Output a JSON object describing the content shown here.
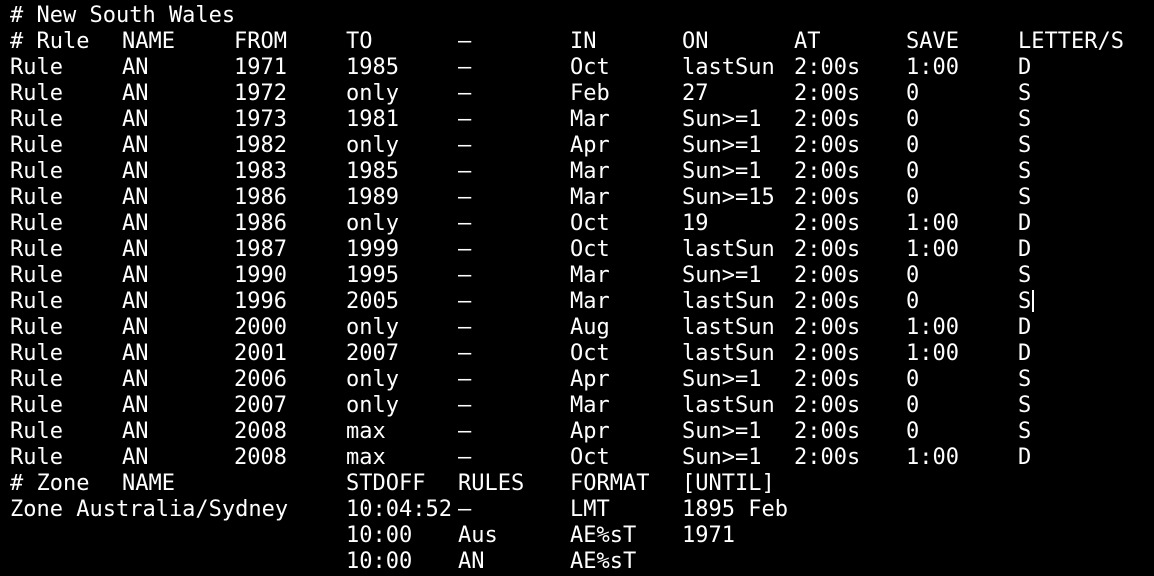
{
  "title": "# New South Wales",
  "rule_header": [
    "# Rule",
    "NAME",
    "FROM",
    "TO",
    "–",
    "IN",
    "ON",
    "AT",
    "SAVE",
    "LETTER/S"
  ],
  "rules": [
    [
      "Rule",
      "AN",
      "1971",
      "1985",
      "–",
      "Oct",
      "lastSun",
      "2:00s",
      "1:00",
      "D"
    ],
    [
      "Rule",
      "AN",
      "1972",
      "only",
      "–",
      "Feb",
      "27",
      "2:00s",
      "0",
      "S"
    ],
    [
      "Rule",
      "AN",
      "1973",
      "1981",
      "–",
      "Mar",
      "Sun>=1",
      "2:00s",
      "0",
      "S"
    ],
    [
      "Rule",
      "AN",
      "1982",
      "only",
      "–",
      "Apr",
      "Sun>=1",
      "2:00s",
      "0",
      "S"
    ],
    [
      "Rule",
      "AN",
      "1983",
      "1985",
      "–",
      "Mar",
      "Sun>=1",
      "2:00s",
      "0",
      "S"
    ],
    [
      "Rule",
      "AN",
      "1986",
      "1989",
      "–",
      "Mar",
      "Sun>=15",
      "2:00s",
      "0",
      "S"
    ],
    [
      "Rule",
      "AN",
      "1986",
      "only",
      "–",
      "Oct",
      "19",
      "2:00s",
      "1:00",
      "D"
    ],
    [
      "Rule",
      "AN",
      "1987",
      "1999",
      "–",
      "Oct",
      "lastSun",
      "2:00s",
      "1:00",
      "D"
    ],
    [
      "Rule",
      "AN",
      "1990",
      "1995",
      "–",
      "Mar",
      "Sun>=1",
      "2:00s",
      "0",
      "S"
    ],
    [
      "Rule",
      "AN",
      "1996",
      "2005",
      "–",
      "Mar",
      "lastSun",
      "2:00s",
      "0",
      "S"
    ],
    [
      "Rule",
      "AN",
      "2000",
      "only",
      "–",
      "Aug",
      "lastSun",
      "2:00s",
      "1:00",
      "D"
    ],
    [
      "Rule",
      "AN",
      "2001",
      "2007",
      "–",
      "Oct",
      "lastSun",
      "2:00s",
      "1:00",
      "D"
    ],
    [
      "Rule",
      "AN",
      "2006",
      "only",
      "–",
      "Apr",
      "Sun>=1",
      "2:00s",
      "0",
      "S"
    ],
    [
      "Rule",
      "AN",
      "2007",
      "only",
      "–",
      "Mar",
      "lastSun",
      "2:00s",
      "0",
      "S"
    ],
    [
      "Rule",
      "AN",
      "2008",
      "max",
      "–",
      "Apr",
      "Sun>=1",
      "2:00s",
      "0",
      "S"
    ],
    [
      "Rule",
      "AN",
      "2008",
      "max",
      "–",
      "Oct",
      "Sun>=1",
      "2:00s",
      "1:00",
      "D"
    ]
  ],
  "zone_header": {
    "hash_zone": "# Zone",
    "name": "NAME",
    "stdoff": "STDOFF",
    "rules": "RULES",
    "format": "FORMAT",
    "until": "[UNTIL]"
  },
  "zones": [
    {
      "label": "Zone Australia/Sydney",
      "stdoff": "10:04:52",
      "rules": "–",
      "format": "LMT",
      "until": "1895 Feb"
    },
    {
      "label": "",
      "stdoff": "10:00",
      "rules": "Aus",
      "format": "AE%sT",
      "until": "1971"
    },
    {
      "label": "",
      "stdoff": "10:00",
      "rules": "AN",
      "format": "AE%sT",
      "until": ""
    }
  ],
  "colors": {
    "background": "#000000",
    "foreground": "#ffffff"
  }
}
